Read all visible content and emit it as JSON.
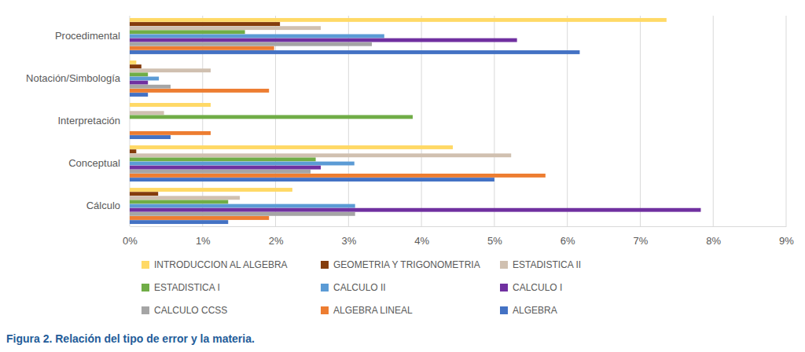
{
  "chart_data": {
    "type": "bar",
    "orientation": "horizontal",
    "grid": true,
    "legend": "bottom",
    "caption": "Figura 2. Relación del tipo de error y la materia.",
    "categories": [
      "Procedimental",
      "Notación/Simbología",
      "Interpretación",
      "Conceptual",
      "Cálculo"
    ],
    "series": [
      {
        "name": "INTRODUCCION AL ALGEBRA",
        "color": "#FFD966",
        "values": [
          7.36,
          0.09,
          1.11,
          4.43,
          2.23
        ]
      },
      {
        "name": "GEOMETRIA Y TRIGONOMETRIA",
        "color": "#843C0C",
        "values": [
          2.06,
          0.16,
          0,
          0.09,
          0.39
        ]
      },
      {
        "name": "ESTADISTICA II",
        "color": "#D0C0B0",
        "values": [
          2.62,
          1.11,
          0.47,
          5.23,
          1.51
        ]
      },
      {
        "name": "ESTADISTICA I",
        "color": "#70AD47",
        "values": [
          1.58,
          0.25,
          3.88,
          2.55,
          1.35
        ]
      },
      {
        "name": "CALCULO II",
        "color": "#5B9BD5",
        "values": [
          3.49,
          0.4,
          0,
          3.08,
          3.09
        ]
      },
      {
        "name": "CALCULO I",
        "color": "#7030A0",
        "values": [
          5.31,
          0.25,
          0,
          2.62,
          7.83
        ]
      },
      {
        "name": "CALCULO CCSS",
        "color": "#A5A5A5",
        "values": [
          3.32,
          0.56,
          0,
          2.48,
          3.09
        ]
      },
      {
        "name": "ALGEBRA LINEAL",
        "color": "#ED7D31",
        "values": [
          1.98,
          1.91,
          1.11,
          5.7,
          1.91
        ]
      },
      {
        "name": "ALGEBRA",
        "color": "#4472C4",
        "values": [
          6.17,
          0.25,
          0.56,
          5.0,
          1.35
        ]
      }
    ],
    "xlim": [
      0,
      9
    ],
    "xticks": [
      {
        "value": 0,
        "label": "0%"
      },
      {
        "value": 1,
        "label": "1%"
      },
      {
        "value": 2,
        "label": "2%"
      },
      {
        "value": 3,
        "label": "3%"
      },
      {
        "value": 4,
        "label": "4%"
      },
      {
        "value": 5,
        "label": "5%"
      },
      {
        "value": 6,
        "label": "6%"
      },
      {
        "value": 7,
        "label": "7%"
      },
      {
        "value": 8,
        "label": "8%"
      },
      {
        "value": 9,
        "label": "9%"
      }
    ]
  }
}
